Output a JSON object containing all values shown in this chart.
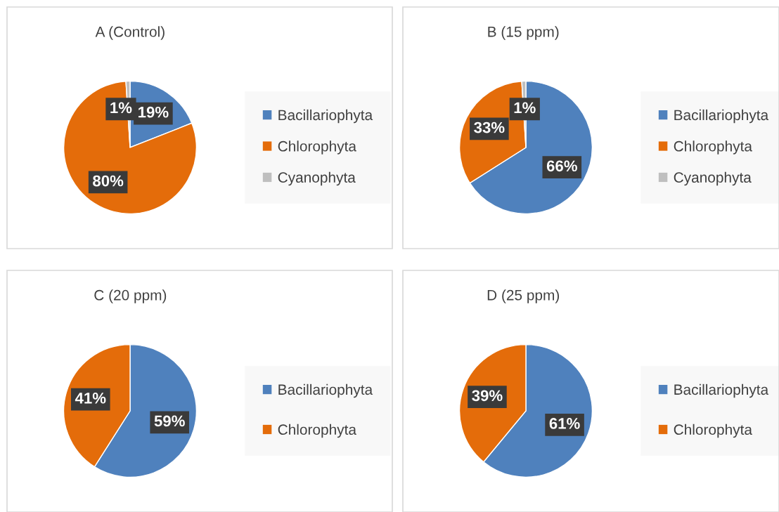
{
  "chart_data": [
    {
      "type": "pie",
      "title": "A (Control)",
      "categories": [
        "Bacillariophyta",
        "Chlorophyta",
        "Cyanophyta"
      ],
      "values": [
        19,
        80,
        1
      ],
      "value_labels": [
        "19%",
        "80%",
        "1%"
      ],
      "colors": [
        "#4f81bd",
        "#e46c0a",
        "#bfbfbf"
      ],
      "legend": "right"
    },
    {
      "type": "pie",
      "title": "B (15 ppm)",
      "categories": [
        "Bacillariophyta",
        "Chlorophyta",
        "Cyanophyta"
      ],
      "values": [
        66,
        33,
        1
      ],
      "value_labels": [
        "66%",
        "33%",
        "1%"
      ],
      "colors": [
        "#4f81bd",
        "#e46c0a",
        "#bfbfbf"
      ],
      "legend": "right"
    },
    {
      "type": "pie",
      "title": "C (20 ppm)",
      "categories": [
        "Bacillariophyta",
        "Chlorophyta"
      ],
      "values": [
        59,
        41
      ],
      "value_labels": [
        "59%",
        "41%"
      ],
      "colors": [
        "#4f81bd",
        "#e46c0a"
      ],
      "legend": "right"
    },
    {
      "type": "pie",
      "title": "D (25 ppm)",
      "categories": [
        "Bacillariophyta",
        "Chlorophyta"
      ],
      "values": [
        61,
        39
      ],
      "value_labels": [
        "61%",
        "39%"
      ],
      "colors": [
        "#4f81bd",
        "#e46c0a"
      ],
      "legend": "right"
    }
  ]
}
